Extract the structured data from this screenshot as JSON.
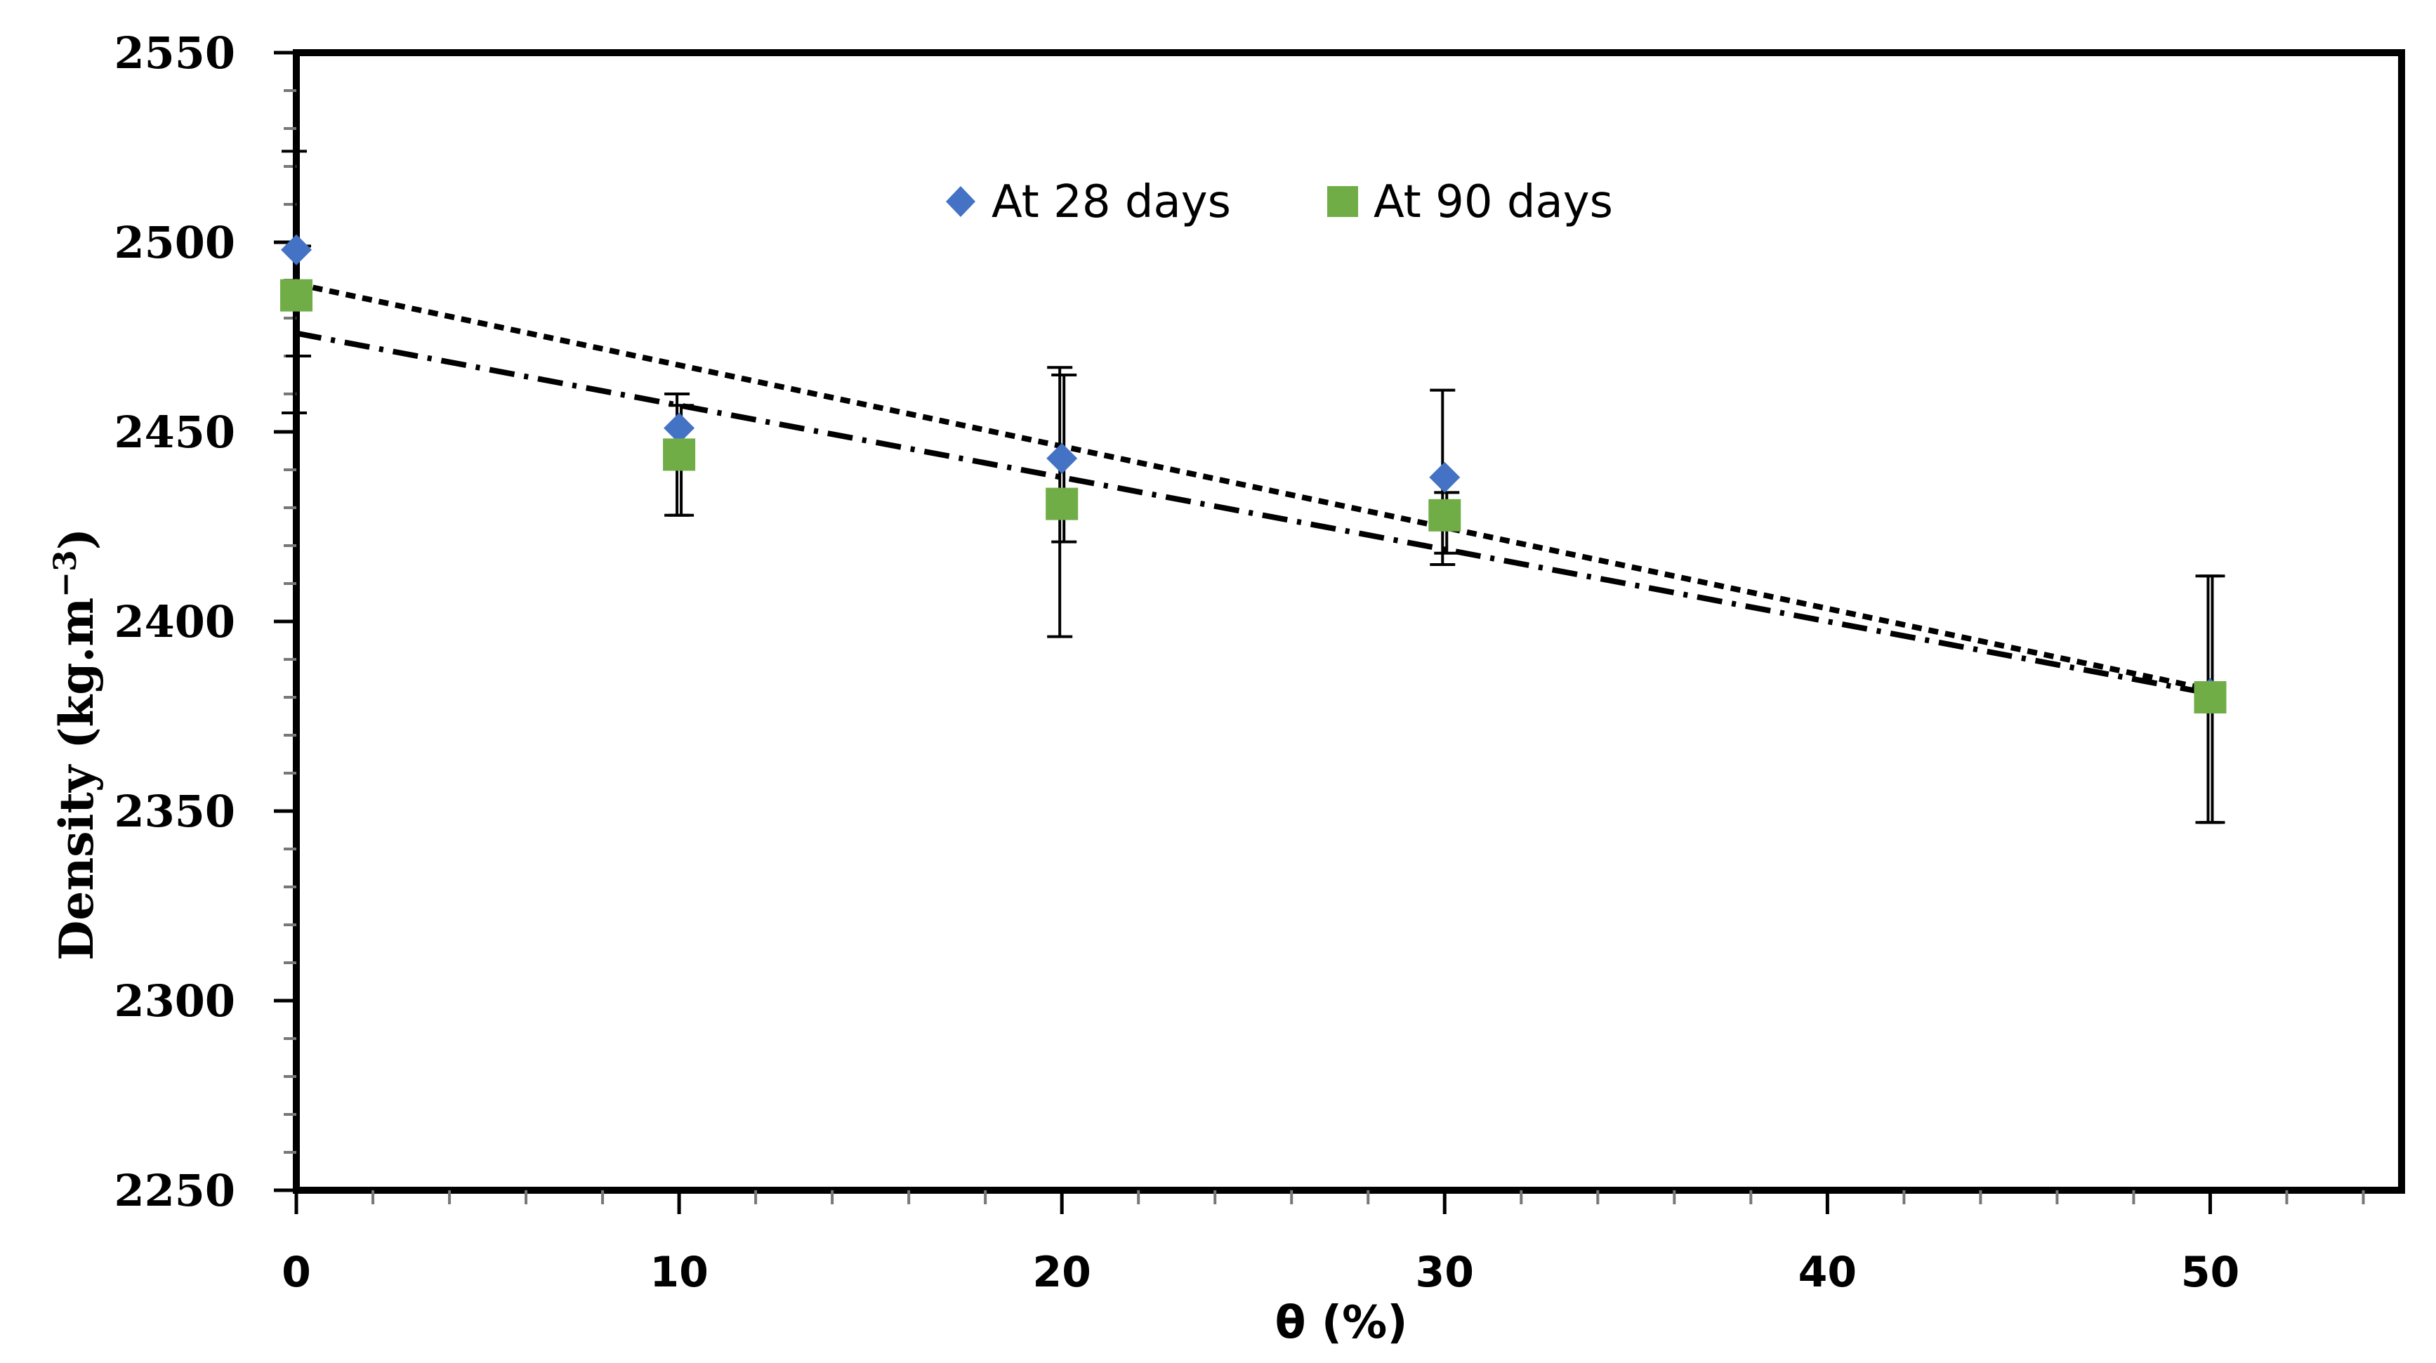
{
  "chart_data": {
    "type": "scatter",
    "title": "",
    "xlabel": "θ (%)",
    "ylabel_main": "Density (kg.m",
    "ylabel_sup": "−3",
    "ylabel_close": ")",
    "xlim": [
      0,
      55
    ],
    "ylim": [
      2250,
      2550
    ],
    "xticks": [
      0,
      10,
      20,
      30,
      40,
      50
    ],
    "xtick_labels": [
      "0",
      "10",
      "20",
      "30",
      "40",
      "50"
    ],
    "yticks": [
      2250,
      2300,
      2350,
      2400,
      2450,
      2500,
      2550
    ],
    "ytick_labels": [
      "2250",
      "2300",
      "2350",
      "2400",
      "2450",
      "2500",
      "2550"
    ],
    "grid": false,
    "legend_position": "top-center",
    "series": [
      {
        "name": "At 28 days",
        "marker": "diamond",
        "color": "#4472c4",
        "x": [
          0,
          10,
          20,
          30,
          50
        ],
        "y": [
          2498,
          2451,
          2443,
          2438,
          2381
        ],
        "error_low": [
          2455,
          2428,
          2396,
          2415,
          2347
        ],
        "error_high": [
          2524,
          2460,
          2467,
          2461,
          2412
        ],
        "trend": {
          "style": "dotted",
          "start": [
            0,
            2489
          ],
          "end": [
            50,
            2382
          ]
        }
      },
      {
        "name": "At 90 days",
        "marker": "square",
        "color": "#70ad47",
        "x": [
          0,
          10,
          20,
          30,
          50
        ],
        "y": [
          2486,
          2444,
          2431,
          2428,
          2380
        ],
        "error_low": [
          2470,
          2428,
          2421,
          2418,
          2347
        ],
        "error_high": [
          2499,
          2457,
          2465,
          2434,
          2412
        ],
        "trend": {
          "style": "dash-dot",
          "start": [
            0,
            2476
          ],
          "end": [
            50,
            2381
          ]
        }
      }
    ]
  }
}
